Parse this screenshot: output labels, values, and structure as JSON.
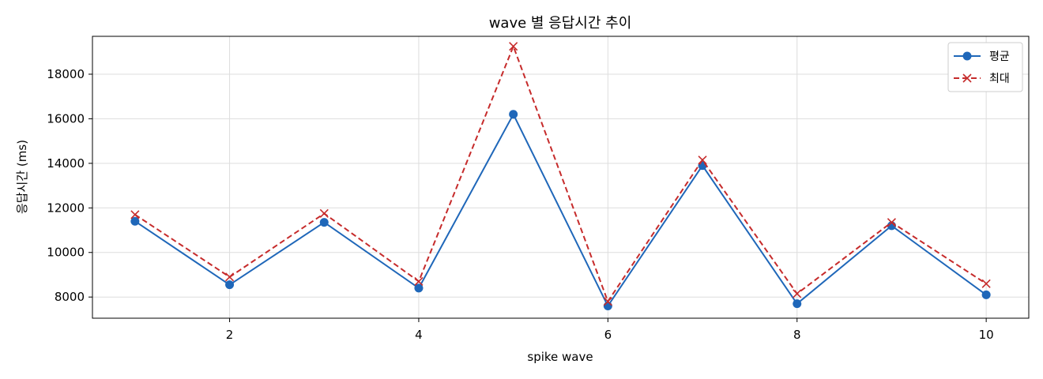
{
  "chart_data": {
    "type": "line",
    "title": "wave 별 응답시간 추이",
    "xlabel": "spike wave",
    "ylabel": "응답시간 (ms)",
    "x": [
      1,
      2,
      3,
      4,
      5,
      6,
      7,
      8,
      9,
      10
    ],
    "xlim": [
      0.55,
      10.45
    ],
    "ylim": [
      7050,
      19700
    ],
    "xticks": [
      2,
      4,
      6,
      8,
      10
    ],
    "yticks": [
      8000,
      10000,
      12000,
      14000,
      16000,
      18000
    ],
    "grid": true,
    "legend_position": "top-right",
    "series": [
      {
        "name": "평균",
        "color": "#1f67b9",
        "line_style": "solid",
        "marker": "circle",
        "values": [
          11400,
          8550,
          11350,
          8400,
          16200,
          7600,
          13900,
          7700,
          11200,
          8100
        ]
      },
      {
        "name": "최대",
        "color": "#c62b2b",
        "line_style": "dashed",
        "marker": "x",
        "values": [
          11700,
          8900,
          11750,
          8700,
          19250,
          7800,
          14150,
          8150,
          11350,
          8600
        ]
      }
    ]
  }
}
